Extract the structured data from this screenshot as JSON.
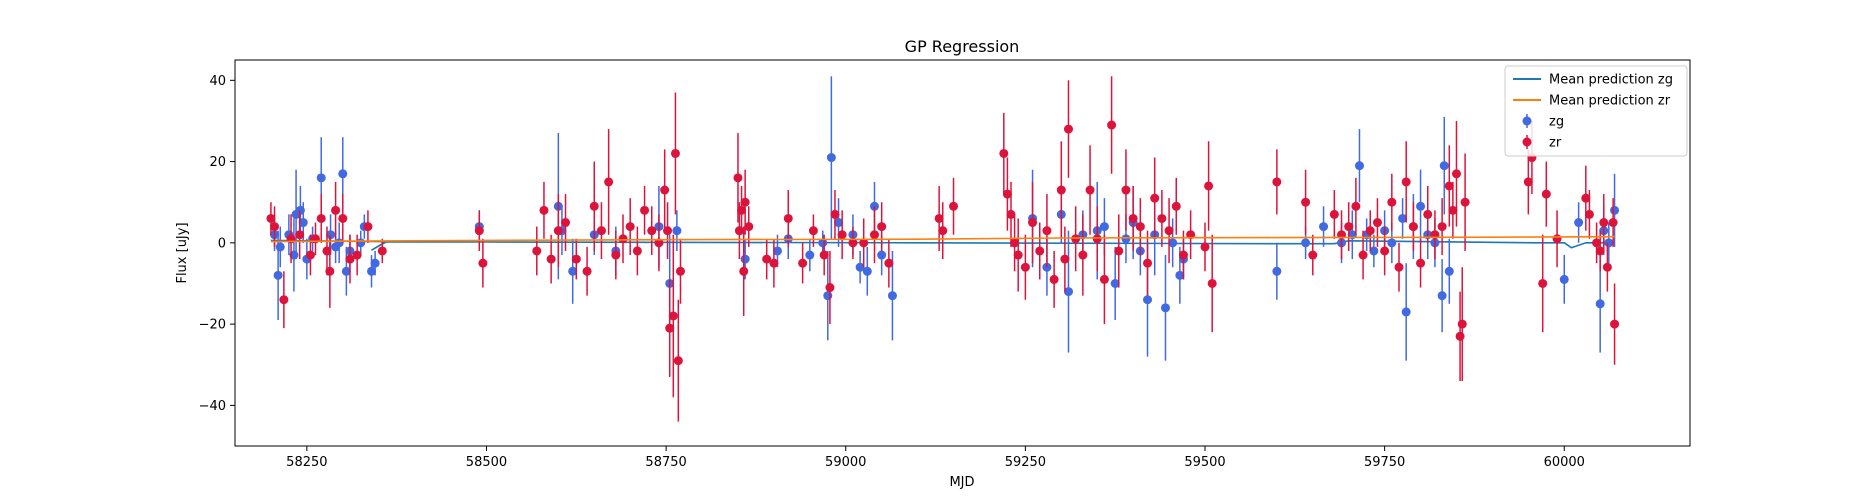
{
  "chart_data": {
    "type": "scatter",
    "title": "GP Regression",
    "xlabel": "MJD",
    "ylabel": "Flux [uJy]",
    "xlim": [
      58150,
      60175
    ],
    "ylim": [
      -50,
      45
    ],
    "xticks": [
      58250,
      58500,
      58750,
      59000,
      59250,
      59500,
      59750,
      60000
    ],
    "yticks": [
      -40,
      -20,
      0,
      20,
      40
    ],
    "grid": false,
    "legend_position": "top-right",
    "legend": [
      {
        "label": "Mean prediction zg",
        "kind": "line",
        "color": "#1f77b4"
      },
      {
        "label": "Mean prediction zr",
        "kind": "line",
        "color": "#ff7f0e"
      },
      {
        "label": "zg",
        "kind": "errorbar",
        "color": "#4169e1"
      },
      {
        "label": "zr",
        "kind": "errorbar",
        "color": "#dc143c"
      }
    ],
    "series": [
      {
        "name": "Mean prediction zg",
        "kind": "line",
        "color": "#1f77b4",
        "points": [
          [
            58200,
            0.6
          ],
          [
            58360,
            0.3
          ],
          [
            58340,
            -1.8
          ],
          [
            58360,
            0.2
          ],
          [
            58500,
            0.2
          ],
          [
            59100,
            0.0
          ],
          [
            59600,
            -0.2
          ],
          [
            59680,
            -0.2
          ],
          [
            59700,
            0.5
          ],
          [
            59960,
            0.0
          ],
          [
            60000,
            0.0
          ],
          [
            60010,
            -1.2
          ],
          [
            60030,
            0.0
          ],
          [
            60070,
            0.0
          ]
        ]
      },
      {
        "name": "Mean prediction zr",
        "kind": "line",
        "color": "#ff7f0e",
        "points": [
          [
            58200,
            0.3
          ],
          [
            58500,
            0.6
          ],
          [
            58800,
            0.8
          ],
          [
            59100,
            0.9
          ],
          [
            59300,
            1.2
          ],
          [
            59600,
            1.3
          ],
          [
            59900,
            1.4
          ],
          [
            60070,
            1.5
          ]
        ]
      },
      {
        "name": "zg",
        "kind": "errorbar",
        "color": "#4169e1",
        "points": [
          [
            58205,
            2,
            4
          ],
          [
            58210,
            -8,
            11
          ],
          [
            58213,
            -1,
            5
          ],
          [
            58225,
            2,
            5
          ],
          [
            58232,
            -3,
            9
          ],
          [
            58235,
            7,
            11
          ],
          [
            58241,
            8,
            6
          ],
          [
            58245,
            5,
            5
          ],
          [
            58250,
            -4,
            5
          ],
          [
            58258,
            1,
            3
          ],
          [
            58270,
            16,
            10
          ],
          [
            58283,
            2,
            5
          ],
          [
            58290,
            -1,
            4
          ],
          [
            58295,
            0,
            5
          ],
          [
            58300,
            17,
            9
          ],
          [
            58305,
            -7,
            6
          ],
          [
            58310,
            -2,
            4
          ],
          [
            58325,
            0,
            3
          ],
          [
            58330,
            4,
            3
          ],
          [
            58340,
            -7,
            4
          ],
          [
            58345,
            -5,
            3
          ],
          [
            58490,
            4,
            4
          ],
          [
            58600,
            9,
            18
          ],
          [
            58605,
            3,
            6
          ],
          [
            58620,
            -7,
            8
          ],
          [
            58650,
            2,
            5
          ],
          [
            58680,
            -2,
            6
          ],
          [
            58740,
            4,
            10
          ],
          [
            58755,
            -10,
            12
          ],
          [
            58765,
            3,
            5
          ],
          [
            58860,
            -4,
            5
          ],
          [
            58905,
            -2,
            4
          ],
          [
            58920,
            1,
            5
          ],
          [
            58950,
            -3,
            4
          ],
          [
            58968,
            0,
            3
          ],
          [
            58975,
            -13,
            11
          ],
          [
            58980,
            21,
            20
          ],
          [
            58990,
            5,
            6
          ],
          [
            59010,
            2,
            5
          ],
          [
            59020,
            -6,
            4
          ],
          [
            59030,
            -7,
            6
          ],
          [
            59040,
            9,
            6
          ],
          [
            59050,
            -3,
            5
          ],
          [
            59065,
            -13,
            11
          ],
          [
            59260,
            6,
            12
          ],
          [
            59280,
            -6,
            7
          ],
          [
            59300,
            7,
            7
          ],
          [
            59310,
            -12,
            15
          ],
          [
            59330,
            2,
            6
          ],
          [
            59350,
            3,
            12
          ],
          [
            59360,
            4,
            7
          ],
          [
            59375,
            -10,
            9
          ],
          [
            59390,
            1,
            6
          ],
          [
            59400,
            5,
            9
          ],
          [
            59410,
            -2,
            6
          ],
          [
            59420,
            -14,
            14
          ],
          [
            59430,
            2,
            10
          ],
          [
            59445,
            -16,
            13
          ],
          [
            59455,
            0,
            6
          ],
          [
            59465,
            -8,
            7
          ],
          [
            59470,
            -4,
            5
          ],
          [
            59600,
            -7,
            7
          ],
          [
            59640,
            0,
            4
          ],
          [
            59665,
            4,
            5
          ],
          [
            59690,
            0,
            5
          ],
          [
            59705,
            2,
            6
          ],
          [
            59715,
            19,
            9
          ],
          [
            59725,
            2,
            4
          ],
          [
            59735,
            -2,
            4
          ],
          [
            59750,
            3,
            5
          ],
          [
            59760,
            0,
            5
          ],
          [
            59775,
            6,
            5
          ],
          [
            59780,
            -17,
            12
          ],
          [
            59790,
            4,
            8
          ],
          [
            59800,
            9,
            9
          ],
          [
            59810,
            2,
            6
          ],
          [
            59820,
            0,
            6
          ],
          [
            59830,
            -13,
            9
          ],
          [
            59833,
            19,
            12
          ],
          [
            59840,
            -7,
            8
          ],
          [
            60000,
            -9,
            6
          ],
          [
            60020,
            5,
            5
          ],
          [
            60050,
            -15,
            12
          ],
          [
            60055,
            3,
            6
          ],
          [
            60062,
            0,
            5
          ],
          [
            60070,
            8,
            9
          ]
        ]
      },
      {
        "name": "zr",
        "kind": "errorbar",
        "color": "#dc143c",
        "points": [
          [
            58200,
            6,
            4
          ],
          [
            58205,
            4,
            5
          ],
          [
            58218,
            -14,
            7
          ],
          [
            58228,
            1,
            6
          ],
          [
            58240,
            2,
            6
          ],
          [
            58255,
            -3,
            5
          ],
          [
            58262,
            1,
            4
          ],
          [
            58270,
            6,
            6
          ],
          [
            58278,
            -2,
            6
          ],
          [
            58282,
            -7,
            9
          ],
          [
            58290,
            8,
            7
          ],
          [
            58300,
            6,
            6
          ],
          [
            58310,
            -4,
            6
          ],
          [
            58320,
            -3,
            5
          ],
          [
            58335,
            4,
            4
          ],
          [
            58355,
            -2,
            3
          ],
          [
            58490,
            3,
            5
          ],
          [
            58495,
            -5,
            6
          ],
          [
            58570,
            -2,
            6
          ],
          [
            58580,
            8,
            7
          ],
          [
            58590,
            -4,
            6
          ],
          [
            58600,
            3,
            9
          ],
          [
            58610,
            5,
            7
          ],
          [
            58625,
            -4,
            5
          ],
          [
            58640,
            -7,
            6
          ],
          [
            58650,
            9,
            11
          ],
          [
            58660,
            3,
            7
          ],
          [
            58670,
            15,
            13
          ],
          [
            58680,
            -3,
            6
          ],
          [
            58690,
            1,
            6
          ],
          [
            58700,
            4,
            7
          ],
          [
            58710,
            -2,
            6
          ],
          [
            58720,
            8,
            6
          ],
          [
            58730,
            3,
            6
          ],
          [
            58740,
            0,
            7
          ],
          [
            58748,
            13,
            10
          ],
          [
            58752,
            3,
            7
          ],
          [
            58755,
            -21,
            12
          ],
          [
            58760,
            -18,
            20
          ],
          [
            58763,
            22,
            15
          ],
          [
            58767,
            -29,
            15
          ],
          [
            58770,
            -7,
            8
          ],
          [
            58850,
            16,
            11
          ],
          [
            58852,
            3,
            7
          ],
          [
            58855,
            8,
            6
          ],
          [
            58858,
            -7,
            11
          ],
          [
            58860,
            10,
            8
          ],
          [
            58865,
            4,
            5
          ],
          [
            58890,
            -4,
            5
          ],
          [
            58900,
            -5,
            6
          ],
          [
            58920,
            6,
            7
          ],
          [
            58940,
            -5,
            5
          ],
          [
            58955,
            3,
            4
          ],
          [
            58970,
            -3,
            5
          ],
          [
            58978,
            -11,
            9
          ],
          [
            58985,
            7,
            6
          ],
          [
            58995,
            2,
            6
          ],
          [
            59010,
            0,
            4
          ],
          [
            59025,
            0,
            6
          ],
          [
            59040,
            2,
            7
          ],
          [
            59050,
            4,
            6
          ],
          [
            59060,
            -5,
            6
          ],
          [
            59130,
            6,
            8
          ],
          [
            59135,
            3,
            7
          ],
          [
            59150,
            9,
            7
          ],
          [
            59220,
            22,
            10
          ],
          [
            59225,
            12,
            9
          ],
          [
            59230,
            7,
            8
          ],
          [
            59235,
            0,
            7
          ],
          [
            59240,
            -3,
            9
          ],
          [
            59250,
            -6,
            8
          ],
          [
            59260,
            5,
            10
          ],
          [
            59270,
            -2,
            7
          ],
          [
            59280,
            3,
            9
          ],
          [
            59290,
            -9,
            7
          ],
          [
            59300,
            13,
            12
          ],
          [
            59305,
            -4,
            8
          ],
          [
            59310,
            28,
            12
          ],
          [
            59320,
            1,
            8
          ],
          [
            59330,
            -3,
            10
          ],
          [
            59340,
            13,
            11
          ],
          [
            59350,
            1,
            8
          ],
          [
            59360,
            -9,
            11
          ],
          [
            59370,
            29,
            12
          ],
          [
            59380,
            -2,
            9
          ],
          [
            59390,
            13,
            10
          ],
          [
            59400,
            6,
            8
          ],
          [
            59410,
            4,
            7
          ],
          [
            59420,
            -5,
            8
          ],
          [
            59430,
            11,
            10
          ],
          [
            59440,
            6,
            7
          ],
          [
            59450,
            3,
            8
          ],
          [
            59460,
            9,
            7
          ],
          [
            59470,
            -3,
            6
          ],
          [
            59480,
            2,
            6
          ],
          [
            59500,
            -1,
            6
          ],
          [
            59505,
            14,
            11
          ],
          [
            59510,
            -10,
            12
          ],
          [
            59600,
            15,
            8
          ],
          [
            59640,
            10,
            8
          ],
          [
            59650,
            -3,
            5
          ],
          [
            59680,
            7,
            6
          ],
          [
            59690,
            2,
            6
          ],
          [
            59700,
            4,
            6
          ],
          [
            59710,
            9,
            7
          ],
          [
            59720,
            -3,
            6
          ],
          [
            59730,
            3,
            5
          ],
          [
            59740,
            5,
            6
          ],
          [
            59750,
            -2,
            6
          ],
          [
            59760,
            10,
            7
          ],
          [
            59770,
            -6,
            6
          ],
          [
            59780,
            15,
            10
          ],
          [
            59790,
            4,
            6
          ],
          [
            59800,
            -5,
            6
          ],
          [
            59810,
            7,
            7
          ],
          [
            59820,
            2,
            6
          ],
          [
            59830,
            4,
            7
          ],
          [
            59840,
            14,
            10
          ],
          [
            59845,
            8,
            7
          ],
          [
            59850,
            17,
            13
          ],
          [
            59855,
            -23,
            11
          ],
          [
            59858,
            -20,
            14
          ],
          [
            59862,
            10,
            12
          ],
          [
            59950,
            15,
            8
          ],
          [
            59955,
            21,
            9
          ],
          [
            59970,
            -10,
            12
          ],
          [
            59975,
            12,
            8
          ],
          [
            59990,
            1,
            7
          ],
          [
            60030,
            11,
            8
          ],
          [
            60035,
            7,
            6
          ],
          [
            60045,
            0,
            5
          ],
          [
            60050,
            -2,
            5
          ],
          [
            60055,
            5,
            7
          ],
          [
            60060,
            -6,
            6
          ],
          [
            60068,
            5,
            6
          ],
          [
            60070,
            -20,
            10
          ]
        ]
      }
    ]
  }
}
